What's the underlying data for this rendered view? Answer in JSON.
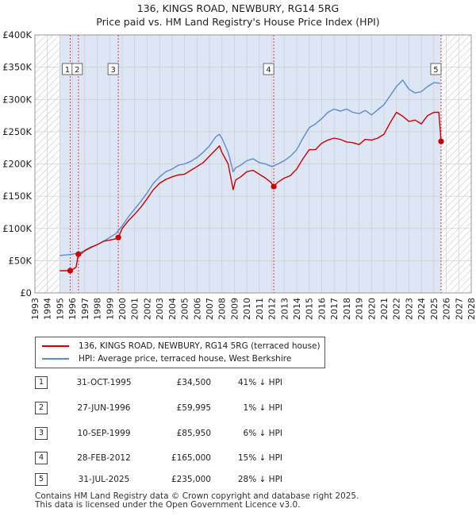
{
  "title_line1": "136, KINGS ROAD, NEWBURY, RG14 5RG",
  "title_line2": "Price paid vs. HM Land Registry's House Price Index (HPI)",
  "colors": {
    "property": "#cc0000",
    "hpi": "#5b8bd0",
    "shade": "#dde6f5",
    "grid": "#d0d0d0",
    "marker": "#cc0000"
  },
  "legend": {
    "property_label": "136, KINGS ROAD, NEWBURY, RG14 5RG (terraced house)",
    "hpi_label": "HPI: Average price, terraced house, West Berkshire"
  },
  "transactions": [
    {
      "num": "1",
      "date": "31-OCT-1995",
      "price": "£34,500",
      "hpi": "41% ↓ HPI"
    },
    {
      "num": "2",
      "date": "27-JUN-1996",
      "price": "£59,995",
      "hpi": "1% ↓ HPI"
    },
    {
      "num": "3",
      "date": "10-SEP-1999",
      "price": "£85,950",
      "hpi": "6% ↓ HPI"
    },
    {
      "num": "4",
      "date": "28-FEB-2012",
      "price": "£165,000",
      "hpi": "15% ↓ HPI"
    },
    {
      "num": "5",
      "date": "31-JUL-2025",
      "price": "£235,000",
      "hpi": "28% ↓ HPI"
    }
  ],
  "footer_line1": "Contains HM Land Registry data © Crown copyright and database right 2025.",
  "footer_line2": "This data is licensed under the Open Government Licence v3.0.",
  "chart_data": {
    "type": "line",
    "title": "136, KINGS ROAD, NEWBURY, RG14 5RG — Price paid vs. HM Land Registry's House Price Index (HPI)",
    "xlabel": "",
    "ylabel": "",
    "xlim": [
      1993,
      2028
    ],
    "ylim": [
      0,
      400000
    ],
    "x_ticks": [
      1993,
      1994,
      1995,
      1996,
      1997,
      1998,
      1999,
      2000,
      2001,
      2002,
      2003,
      2004,
      2005,
      2006,
      2007,
      2008,
      2009,
      2010,
      2011,
      2012,
      2013,
      2014,
      2015,
      2016,
      2017,
      2018,
      2019,
      2020,
      2021,
      2022,
      2023,
      2024,
      2025,
      2026,
      2027,
      2028
    ],
    "y_ticks": [
      0,
      50000,
      100000,
      150000,
      200000,
      250000,
      300000,
      350000,
      400000
    ],
    "y_tick_labels": [
      "£0",
      "£50K",
      "£100K",
      "£150K",
      "£200K",
      "£250K",
      "£300K",
      "£350K",
      "£400K"
    ],
    "hatched_ranges": [
      [
        1993,
        1995.0
      ],
      [
        2025.6,
        2028
      ]
    ],
    "shaded_ranges": [
      [
        1995.0,
        2025.6
      ]
    ],
    "series": [
      {
        "name": "136, KINGS ROAD, NEWBURY, RG14 5RG (terraced house)",
        "x": [
          1995.0,
          1995.5,
          1995.83,
          1996.0,
          1996.3,
          1996.49,
          1996.8,
          1997.0,
          1997.5,
          1998.0,
          1998.5,
          1999.0,
          1999.5,
          1999.69,
          2000.0,
          2000.5,
          2001.0,
          2001.5,
          2002.0,
          2002.5,
          2003.0,
          2003.5,
          2004.0,
          2004.5,
          2005.0,
          2005.5,
          2006.0,
          2006.5,
          2007.0,
          2007.5,
          2007.8,
          2008.0,
          2008.5,
          2008.9,
          2009.1,
          2009.5,
          2010.0,
          2010.5,
          2011.0,
          2011.5,
          2011.9,
          2012.16,
          2012.5,
          2013.0,
          2013.5,
          2014.0,
          2014.5,
          2015.0,
          2015.5,
          2016.0,
          2016.5,
          2017.0,
          2017.5,
          2018.0,
          2018.5,
          2019.0,
          2019.5,
          2020.0,
          2020.5,
          2021.0,
          2021.5,
          2022.0,
          2022.5,
          2023.0,
          2023.5,
          2024.0,
          2024.5,
          2025.0,
          2025.4,
          2025.58
        ],
        "values": [
          34500,
          34500,
          34500,
          36000,
          40000,
          59995,
          62000,
          66000,
          71000,
          75000,
          80000,
          82000,
          84000,
          85950,
          100000,
          112000,
          122000,
          133000,
          146000,
          160000,
          170000,
          176000,
          180000,
          183000,
          184000,
          190000,
          196000,
          202000,
          212000,
          222000,
          228000,
          218000,
          200000,
          160000,
          175000,
          180000,
          188000,
          190000,
          184000,
          178000,
          172000,
          165000,
          172000,
          178000,
          182000,
          192000,
          208000,
          222000,
          222000,
          232000,
          237000,
          240000,
          238000,
          234000,
          233000,
          230000,
          238000,
          237000,
          240000,
          246000,
          264000,
          280000,
          274000,
          266000,
          268000,
          262000,
          275000,
          280000,
          280000,
          235000
        ]
      },
      {
        "name": "HPI: Average price, terraced house, West Berkshire",
        "x": [
          1995.0,
          1995.5,
          1996.0,
          1996.5,
          1997.0,
          1997.5,
          1998.0,
          1998.5,
          1999.0,
          1999.5,
          2000.0,
          2000.5,
          2001.0,
          2001.5,
          2002.0,
          2002.5,
          2003.0,
          2003.5,
          2004.0,
          2004.5,
          2005.0,
          2005.5,
          2006.0,
          2006.5,
          2007.0,
          2007.5,
          2007.8,
          2008.0,
          2008.5,
          2008.9,
          2009.1,
          2009.5,
          2010.0,
          2010.5,
          2011.0,
          2011.5,
          2012.0,
          2012.5,
          2013.0,
          2013.5,
          2014.0,
          2014.5,
          2015.0,
          2015.5,
          2016.0,
          2016.5,
          2017.0,
          2017.5,
          2018.0,
          2018.5,
          2019.0,
          2019.5,
          2020.0,
          2020.5,
          2021.0,
          2021.5,
          2022.0,
          2022.5,
          2023.0,
          2023.5,
          2024.0,
          2024.5,
          2025.0,
          2025.5
        ],
        "values": [
          58000,
          59000,
          60000,
          62000,
          65000,
          70000,
          75000,
          80000,
          86000,
          92000,
          104000,
          118000,
          130000,
          142000,
          155000,
          170000,
          180000,
          188000,
          192000,
          198000,
          200000,
          204000,
          210000,
          218000,
          228000,
          242000,
          246000,
          240000,
          218000,
          188000,
          194000,
          198000,
          205000,
          208000,
          202000,
          200000,
          196000,
          200000,
          205000,
          212000,
          222000,
          240000,
          256000,
          262000,
          270000,
          280000,
          285000,
          282000,
          285000,
          280000,
          278000,
          283000,
          276000,
          284000,
          292000,
          306000,
          320000,
          330000,
          316000,
          310000,
          312000,
          320000,
          326000,
          325000
        ]
      }
    ],
    "transactions": [
      {
        "label": "1",
        "x": 1995.83,
        "y": 34500
      },
      {
        "label": "2",
        "x": 1996.49,
        "y": 59995
      },
      {
        "label": "3",
        "x": 1999.69,
        "y": 85950
      },
      {
        "label": "4",
        "x": 2012.16,
        "y": 165000
      },
      {
        "label": "5",
        "x": 2025.58,
        "y": 235000
      }
    ]
  }
}
